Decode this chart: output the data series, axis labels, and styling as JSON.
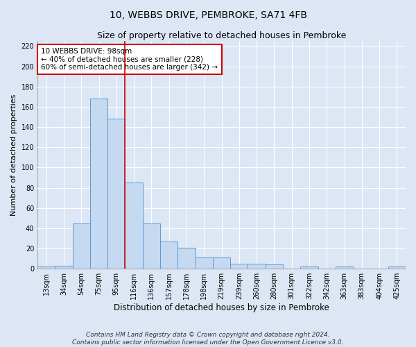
{
  "title": "10, WEBBS DRIVE, PEMBROKE, SA71 4FB",
  "subtitle": "Size of property relative to detached houses in Pembroke",
  "xlabel": "Distribution of detached houses by size in Pembroke",
  "ylabel": "Number of detached properties",
  "categories": [
    "13sqm",
    "34sqm",
    "54sqm",
    "75sqm",
    "95sqm",
    "116sqm",
    "136sqm",
    "157sqm",
    "178sqm",
    "198sqm",
    "219sqm",
    "239sqm",
    "260sqm",
    "280sqm",
    "301sqm",
    "322sqm",
    "342sqm",
    "363sqm",
    "383sqm",
    "404sqm",
    "425sqm"
  ],
  "values": [
    2,
    3,
    45,
    168,
    148,
    85,
    45,
    27,
    21,
    11,
    11,
    5,
    5,
    4,
    0,
    2,
    0,
    2,
    0,
    0,
    2
  ],
  "bar_color": "#c5d9f0",
  "bar_edge_color": "#5b9bd5",
  "background_color": "#dce6f5",
  "grid_color": "#ffffff",
  "vline_x": 4.5,
  "vline_color": "#cc0000",
  "annotation_text": "10 WEBBS DRIVE: 98sqm\n← 40% of detached houses are smaller (228)\n60% of semi-detached houses are larger (342) →",
  "annotation_box_color": "#ffffff",
  "annotation_box_edge_color": "#cc0000",
  "ylim": [
    0,
    225
  ],
  "yticks": [
    0,
    20,
    40,
    60,
    80,
    100,
    120,
    140,
    160,
    180,
    200,
    220
  ],
  "footer": "Contains HM Land Registry data © Crown copyright and database right 2024.\nContains public sector information licensed under the Open Government Licence v3.0.",
  "title_fontsize": 10,
  "subtitle_fontsize": 9,
  "xlabel_fontsize": 8.5,
  "ylabel_fontsize": 8,
  "tick_fontsize": 7,
  "annotation_fontsize": 7.5,
  "footer_fontsize": 6.5
}
